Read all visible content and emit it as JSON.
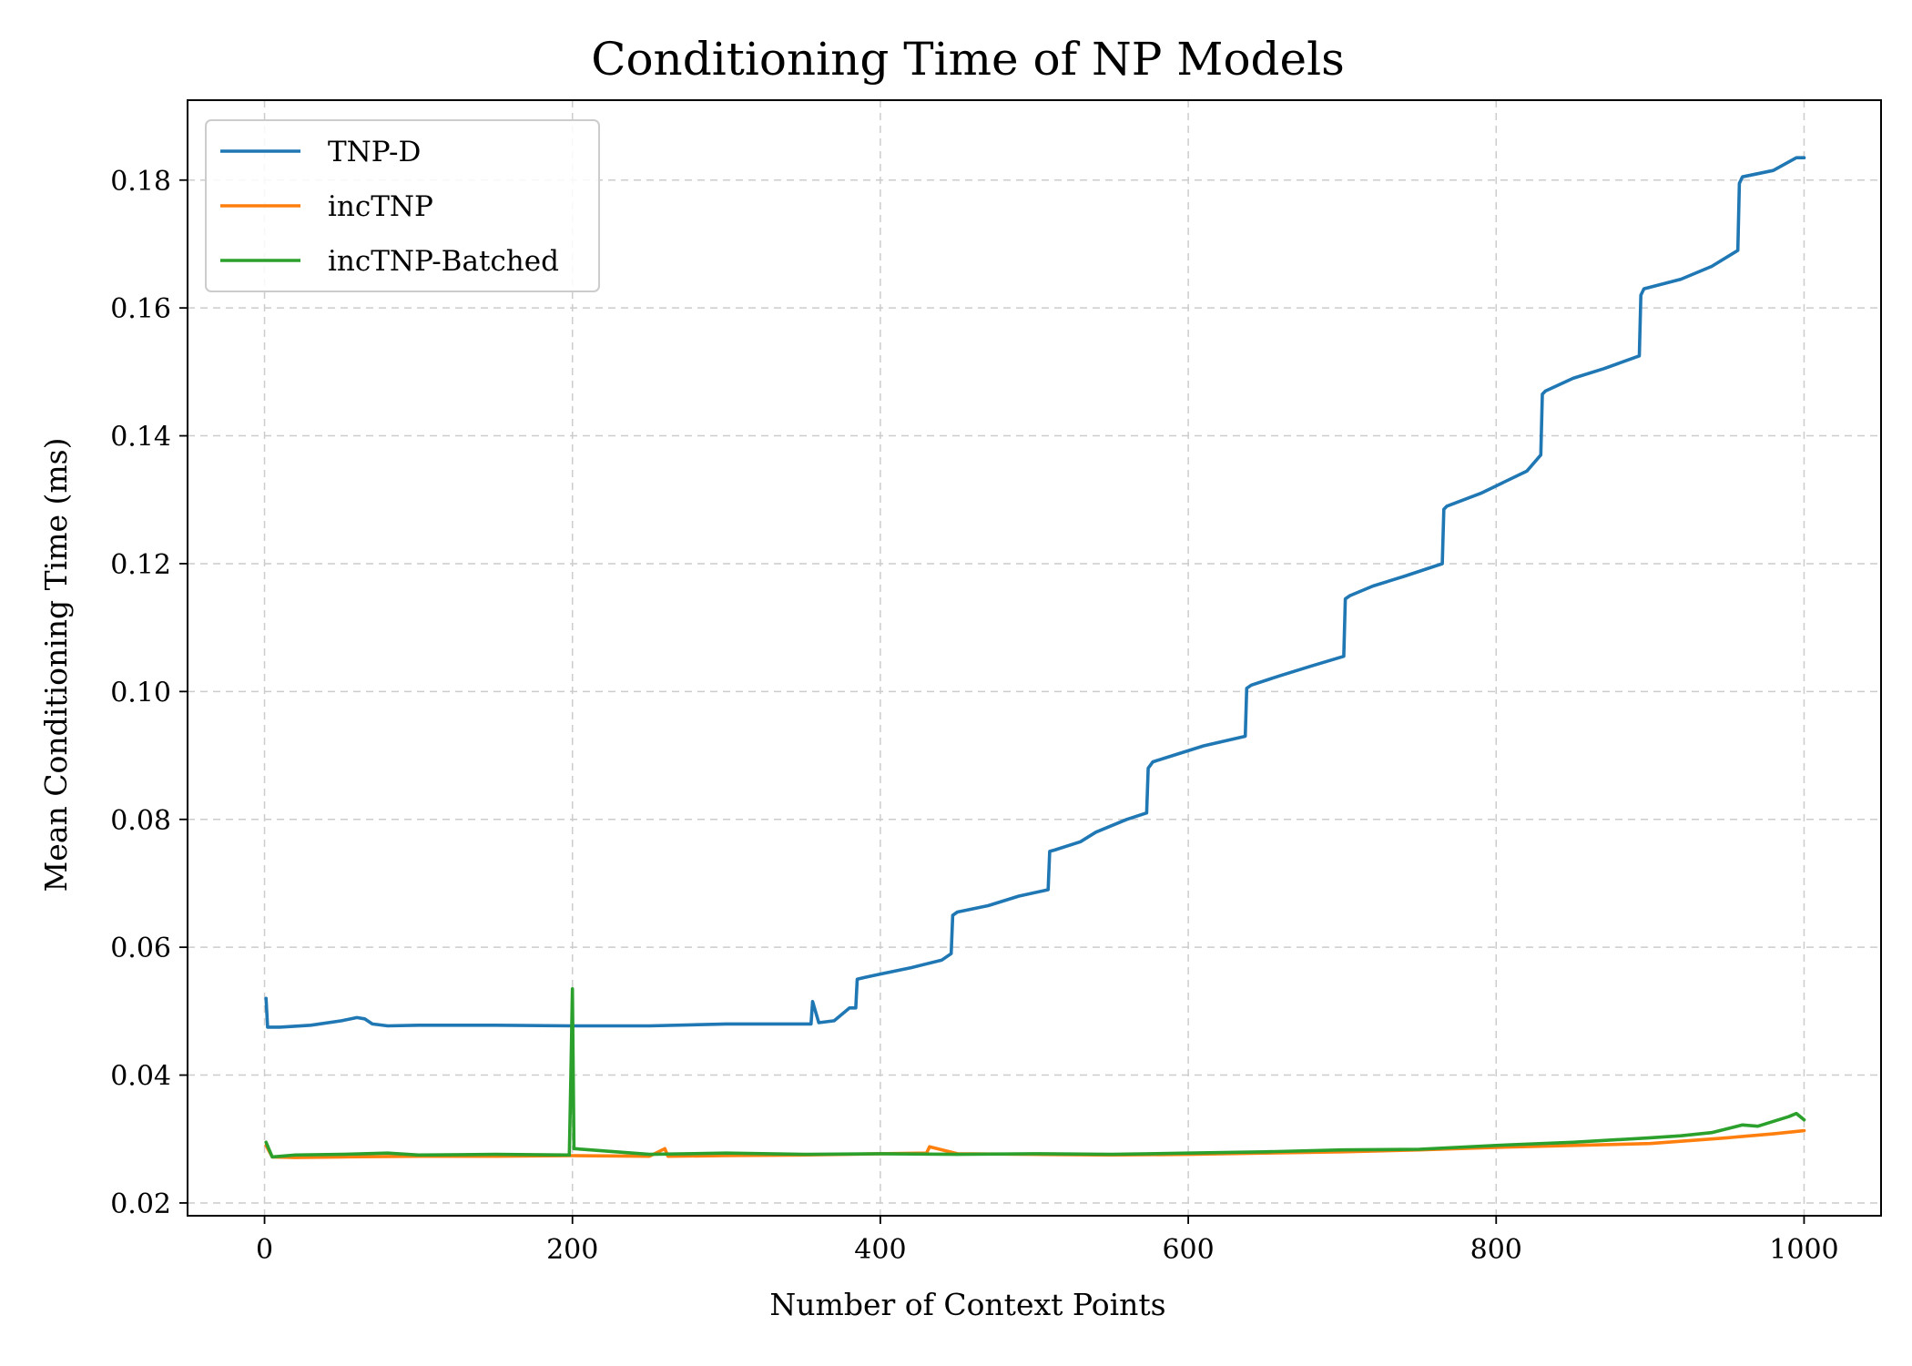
{
  "chart_data": {
    "type": "line",
    "title": "Conditioning Time of NP Models",
    "xlabel": "Number of Context Points",
    "ylabel": "Mean Conditioning Time (ms)",
    "xlim": [
      -50,
      1050
    ],
    "ylim": [
      0.018,
      0.1925
    ],
    "x_ticks": [
      0,
      200,
      400,
      600,
      800,
      1000
    ],
    "y_ticks": [
      0.02,
      0.04,
      0.06,
      0.08,
      0.1,
      0.12,
      0.14,
      0.16,
      0.18
    ],
    "x_tick_labels": [
      "0",
      "200",
      "400",
      "600",
      "800",
      "1000"
    ],
    "y_tick_labels": [
      "0.02",
      "0.04",
      "0.06",
      "0.08",
      "0.10",
      "0.12",
      "0.14",
      "0.16",
      "0.18"
    ],
    "grid": true,
    "legend_position": "top-left",
    "series": [
      {
        "name": "TNP-D",
        "color": "#1f77b4",
        "x": [
          1,
          2,
          10,
          30,
          50,
          60,
          65,
          70,
          80,
          100,
          150,
          200,
          250,
          300,
          340,
          355,
          356,
          360,
          370,
          380,
          384,
          385,
          390,
          400,
          420,
          440,
          446,
          447,
          450,
          470,
          490,
          509,
          510,
          513,
          530,
          540,
          560,
          573,
          574,
          577,
          590,
          610,
          637,
          638,
          641,
          660,
          680,
          701,
          702,
          705,
          720,
          740,
          765,
          766,
          768,
          790,
          820,
          829,
          830,
          832,
          850,
          870,
          893,
          894,
          896,
          920,
          940,
          957,
          958,
          960,
          980,
          995,
          1000
        ],
        "y": [
          0.052,
          0.0475,
          0.0475,
          0.0478,
          0.0485,
          0.049,
          0.0488,
          0.048,
          0.0477,
          0.0478,
          0.0478,
          0.0477,
          0.0477,
          0.048,
          0.048,
          0.048,
          0.0515,
          0.0482,
          0.0485,
          0.0505,
          0.0505,
          0.055,
          0.0553,
          0.0558,
          0.0568,
          0.058,
          0.059,
          0.065,
          0.0655,
          0.0665,
          0.068,
          0.069,
          0.075,
          0.0752,
          0.0765,
          0.078,
          0.08,
          0.081,
          0.088,
          0.089,
          0.09,
          0.0915,
          0.093,
          0.1005,
          0.101,
          0.1025,
          0.104,
          0.1055,
          0.1145,
          0.115,
          0.1165,
          0.118,
          0.12,
          0.1285,
          0.129,
          0.131,
          0.1345,
          0.137,
          0.1465,
          0.147,
          0.149,
          0.1505,
          0.1525,
          0.162,
          0.163,
          0.1645,
          0.1665,
          0.169,
          0.1795,
          0.1805,
          0.1815,
          0.1835,
          0.1835
        ]
      },
      {
        "name": "incTNP",
        "color": "#ff7f0e",
        "x": [
          1,
          5,
          20,
          50,
          100,
          150,
          200,
          250,
          260,
          262,
          300,
          350,
          400,
          430,
          432,
          450,
          500,
          550,
          600,
          650,
          700,
          750,
          800,
          850,
          900,
          950,
          980,
          1000
        ],
        "y": [
          0.029,
          0.0272,
          0.0271,
          0.0272,
          0.0273,
          0.0273,
          0.0274,
          0.0273,
          0.0285,
          0.0273,
          0.0274,
          0.0275,
          0.0277,
          0.0278,
          0.0288,
          0.0277,
          0.0276,
          0.0275,
          0.0276,
          0.0278,
          0.028,
          0.0283,
          0.0287,
          0.029,
          0.0293,
          0.0302,
          0.0308,
          0.0313
        ]
      },
      {
        "name": "incTNP-Batched",
        "color": "#2ca02c",
        "x": [
          1,
          5,
          20,
          50,
          80,
          100,
          150,
          198,
          199,
          200,
          201,
          250,
          300,
          350,
          400,
          450,
          500,
          550,
          600,
          650,
          700,
          750,
          800,
          850,
          900,
          920,
          940,
          960,
          970,
          990,
          995,
          1000
        ],
        "y": [
          0.0295,
          0.0272,
          0.0275,
          0.0276,
          0.0278,
          0.0275,
          0.0276,
          0.0275,
          0.04,
          0.0535,
          0.0285,
          0.0276,
          0.0278,
          0.0276,
          0.0277,
          0.0276,
          0.0277,
          0.0276,
          0.0278,
          0.028,
          0.0283,
          0.0284,
          0.029,
          0.0295,
          0.0302,
          0.0305,
          0.031,
          0.0322,
          0.032,
          0.0335,
          0.034,
          0.033
        ]
      }
    ]
  }
}
